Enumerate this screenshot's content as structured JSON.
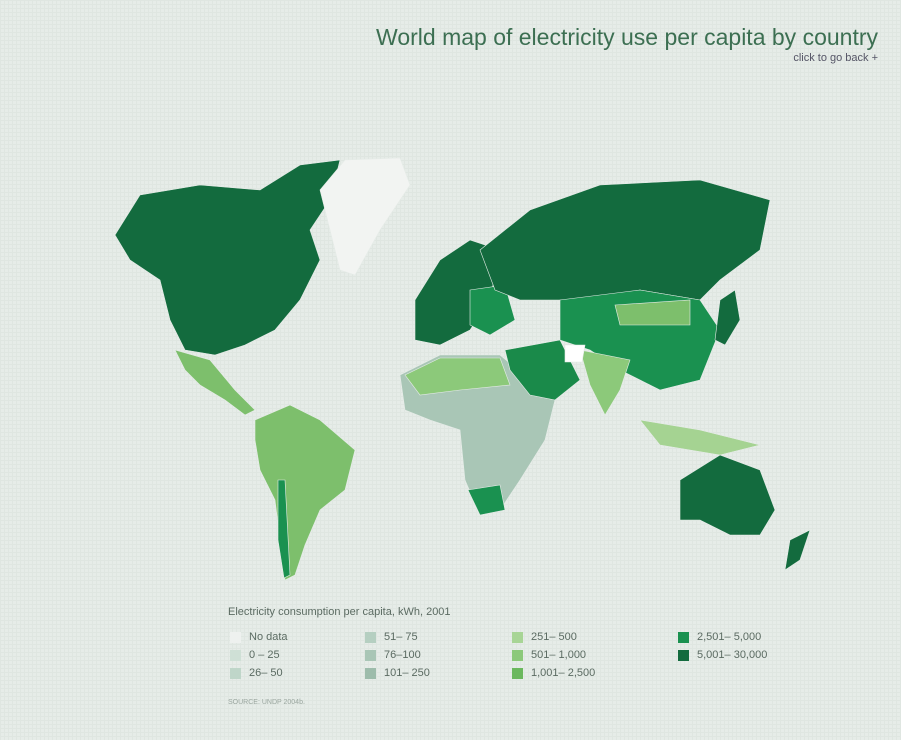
{
  "header": {
    "title": "World map of electricity use per capita by country",
    "back_link": "click to go back +"
  },
  "legend": {
    "title": "Electricity consumption per capita, kWh, 2001",
    "items": [
      {
        "label": "No data",
        "color": "#eef1ef"
      },
      {
        "label": "0 – 25",
        "color": "#cfe0d6"
      },
      {
        "label": "26– 50",
        "color": "#bfd6c9"
      },
      {
        "label": "51– 75",
        "color": "#b5cfc1"
      },
      {
        "label": "76–100",
        "color": "#a9c6b6"
      },
      {
        "label": "101– 250",
        "color": "#9dbcab"
      },
      {
        "label": "251– 500",
        "color": "#a8d596"
      },
      {
        "label": "501– 1,000",
        "color": "#8cc97a"
      },
      {
        "label": "1,001– 2,500",
        "color": "#6bb85e"
      },
      {
        "label": "2,501– 5,000",
        "color": "#1a9150"
      },
      {
        "label": "5,001– 30,000",
        "color": "#136b3e"
      }
    ]
  },
  "source": "SOURCE: UNDP 2004b."
}
